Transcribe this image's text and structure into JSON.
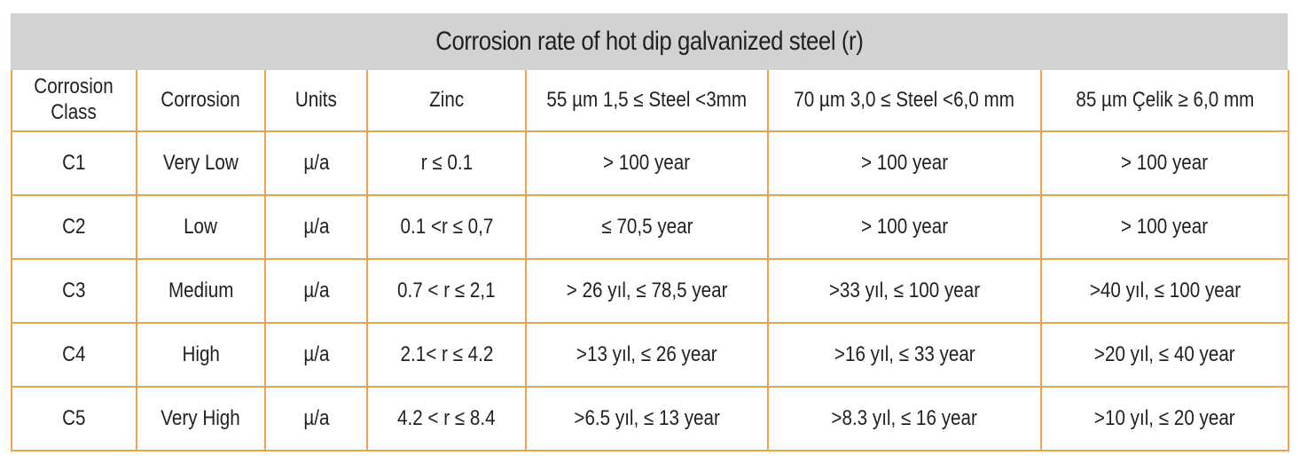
{
  "title": "Corrosion rate of hot dip galvanized steel (r)",
  "columns": [
    {
      "line1": "Corrosion",
      "line2": "Class"
    },
    {
      "line1": "Corrosion",
      "line2": ""
    },
    {
      "line1": "Units",
      "line2": ""
    },
    {
      "line1": "Zinc",
      "line2": ""
    },
    {
      "line1": "55 µm 1,5 ≤ Steel <3mm",
      "line2": ""
    },
    {
      "line1": "70 µm 3,0 ≤ Steel <6,0 mm",
      "line2": ""
    },
    {
      "line1": "85 µm Çelik ≥ 6,0 mm",
      "line2": ""
    }
  ],
  "rows": [
    [
      "C1",
      "Very Low",
      "µ/a",
      "r ≤ 0.1",
      "> 100 year",
      "> 100 year",
      "> 100 year"
    ],
    [
      "C2",
      "Low",
      "µ/a",
      "0.1 <r ≤ 0,7",
      "≤ 70,5 year",
      "> 100 year",
      "> 100 year"
    ],
    [
      "C3",
      "Medium",
      "µ/a",
      "0.7 < r ≤ 2,1",
      "> 26 yıl, ≤ 78,5 year",
      ">33 yıl, ≤ 100 year",
      ">40 yıl, ≤ 100 year"
    ],
    [
      "C4",
      "High",
      "µ/a",
      "2.1< r ≤ 4.2",
      ">13 yıl, ≤ 26 year",
      ">16 yıl, ≤ 33 year",
      ">20 yıl, ≤ 40 year"
    ],
    [
      "C5",
      "Very High",
      "µ/a",
      "4.2 < r ≤ 8.4",
      ">6.5 yıl, ≤ 13 year",
      ">8.3 yıl, ≤ 16 year",
      ">10 yıl, ≤ 20 year"
    ]
  ],
  "colors": {
    "title_background": "#d1d2d4",
    "grid_lines": "#f5a04e",
    "text": "#231f20"
  }
}
